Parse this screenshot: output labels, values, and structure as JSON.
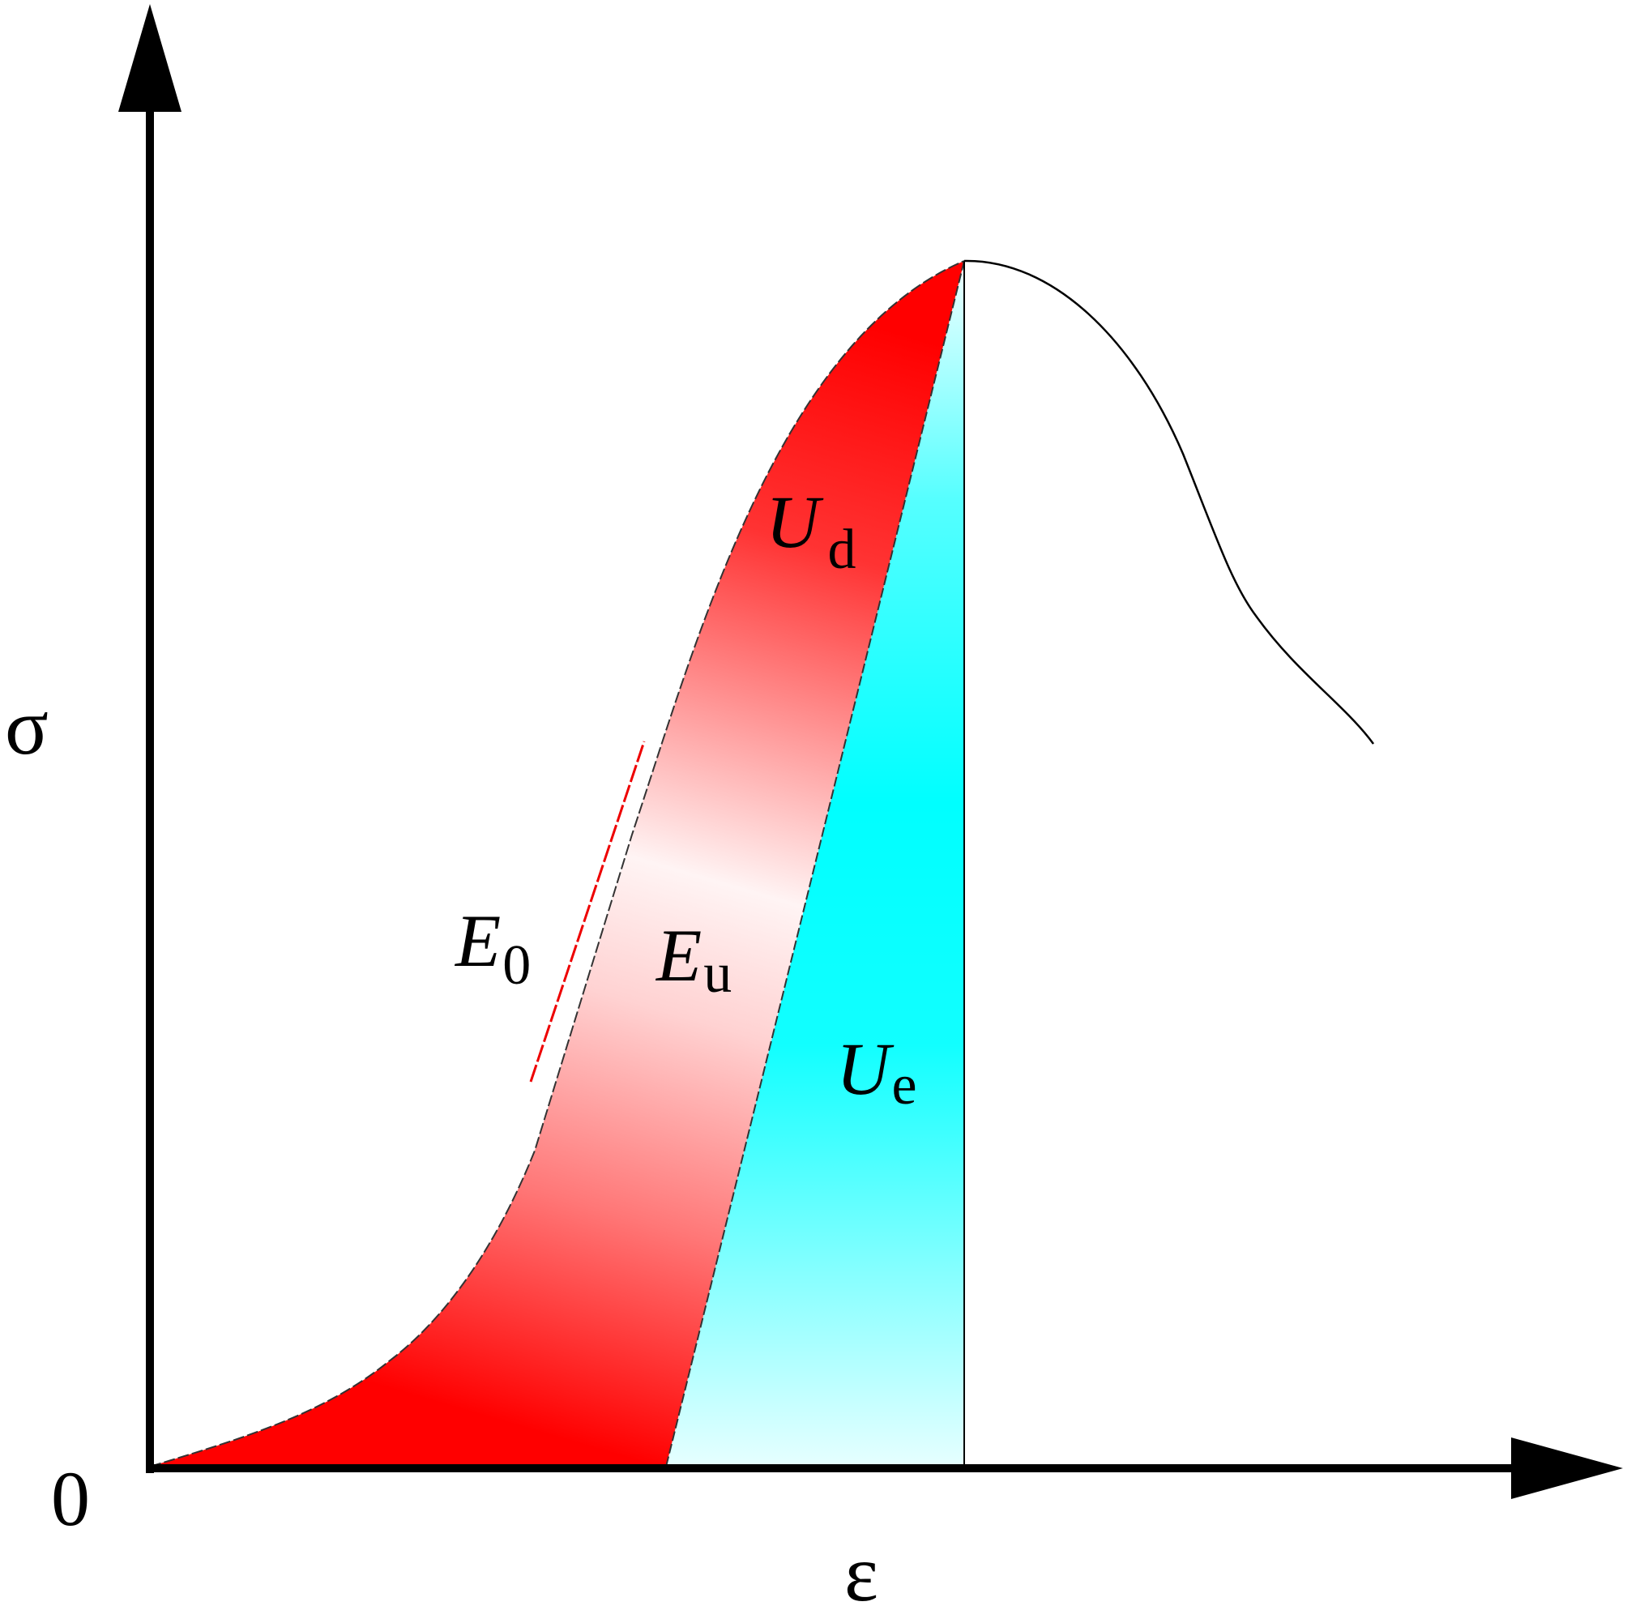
{
  "axes": {
    "y_label": "σ",
    "x_label": "ε",
    "origin_label": "0"
  },
  "labels": {
    "E0": {
      "main": "E",
      "sub": "0"
    },
    "Eu": {
      "main": "E",
      "sub": "u"
    },
    "Ud": {
      "main": "U",
      "sub": "d"
    },
    "Ue": {
      "main": "U",
      "sub": "e"
    }
  },
  "colors": {
    "axis": "#000000",
    "curve": "#000000",
    "dissipated_energy_fill": "#ff0000",
    "elastic_energy_fill": "#00ffff",
    "background": "#ffffff"
  }
}
